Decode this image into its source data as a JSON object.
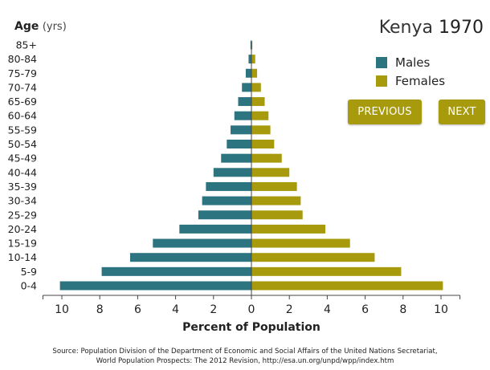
{
  "header": {
    "country": "Kenya",
    "year": "1970",
    "age_label": "Age",
    "age_unit": "(yrs)"
  },
  "legend": {
    "males": "Males",
    "females": "Females"
  },
  "buttons": {
    "previous": "PREVIOUS",
    "next": "NEXT"
  },
  "source": {
    "line1": "Source: Population Division of the Department of Economic and Social Affairs of the United Nations Secretariat,",
    "line2": "World Population Prospects: The 2012 Revision, http://esa.un.org/unpd/wpp/index.htm"
  },
  "colors": {
    "male": "#2c7480",
    "female": "#a79b0d"
  },
  "chart_data": {
    "type": "bar",
    "orientation": "horizontal-population-pyramid",
    "xlabel": "Percent of Population",
    "ylabel": "Age (yrs)",
    "xlim": [
      -11,
      11
    ],
    "x_ticks": [
      -10,
      -8,
      -6,
      -4,
      -2,
      0,
      2,
      4,
      6,
      8,
      10
    ],
    "x_tick_labels": [
      "10",
      "8",
      "6",
      "4",
      "2",
      "0",
      "2",
      "4",
      "6",
      "8",
      "10"
    ],
    "categories": [
      "0-4",
      "5-9",
      "10-14",
      "15-19",
      "20-24",
      "25-29",
      "30-34",
      "35-39",
      "40-44",
      "45-49",
      "50-54",
      "55-59",
      "60-64",
      "65-69",
      "70-74",
      "75-79",
      "80-84",
      "85+"
    ],
    "series": [
      {
        "name": "Males",
        "values": [
          10.1,
          7.9,
          6.4,
          5.2,
          3.8,
          2.8,
          2.6,
          2.4,
          2.0,
          1.6,
          1.3,
          1.1,
          0.9,
          0.7,
          0.5,
          0.3,
          0.15,
          0.05
        ]
      },
      {
        "name": "Females",
        "values": [
          10.1,
          7.9,
          6.5,
          5.2,
          3.9,
          2.7,
          2.6,
          2.4,
          2.0,
          1.6,
          1.2,
          1.0,
          0.9,
          0.7,
          0.5,
          0.3,
          0.2,
          0.05
        ]
      }
    ],
    "grid": false,
    "legend_position": "top-right"
  }
}
